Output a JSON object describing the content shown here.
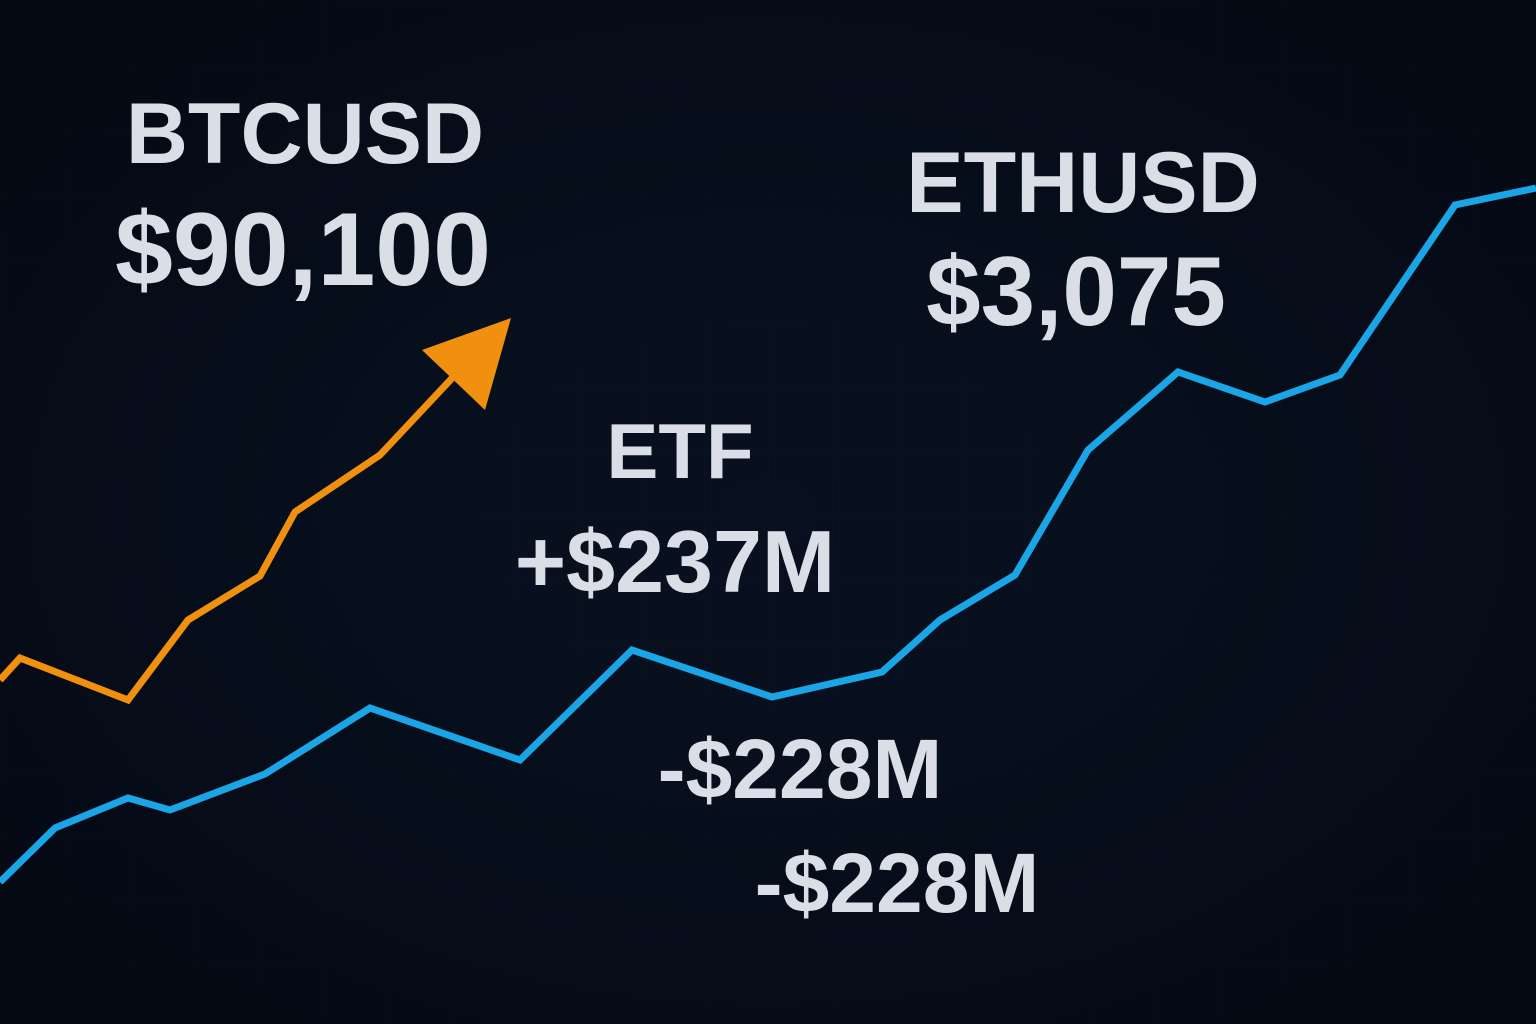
{
  "labels": {
    "btc_symbol": "BTCUSD",
    "btc_price": "$90,100",
    "eth_symbol": "ETHUSD",
    "eth_price": "$3,075",
    "etf_title": "ETF",
    "etf_inflow": "+$237M",
    "etf_outflow_1": "-$228M",
    "etf_outflow_2": "-$228M"
  }
}
